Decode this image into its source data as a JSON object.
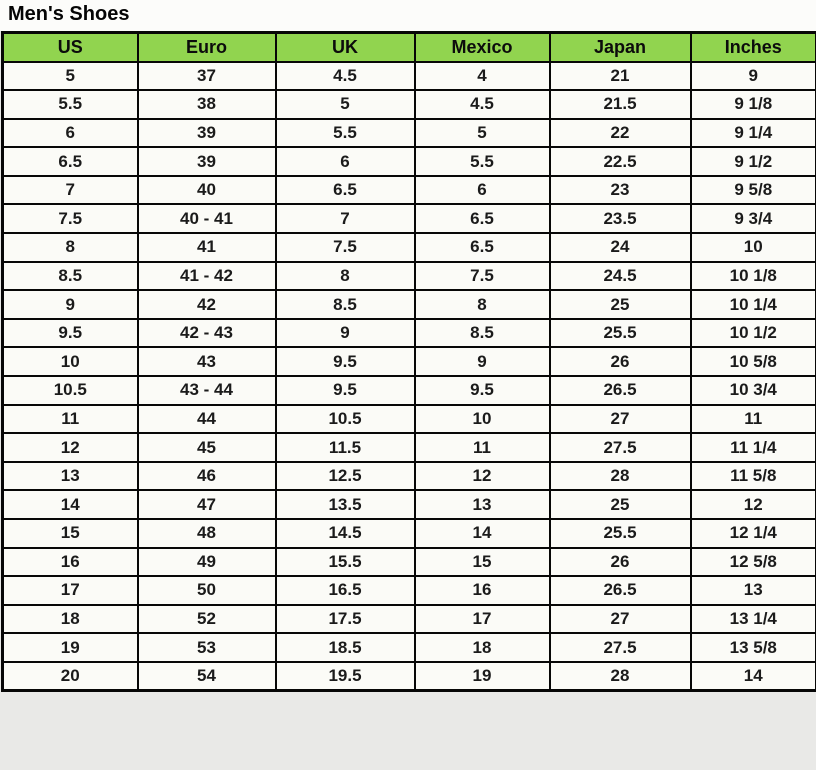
{
  "title": "Men's Shoes",
  "colors": {
    "header_bg": "#91d44f",
    "cell_bg": "#fbfbf7",
    "page_bg": "#e9e9e7",
    "border": "#070707",
    "text": "#1b1b1b"
  },
  "chart_data": {
    "type": "table",
    "title": "Men's Shoes",
    "columns": [
      "US",
      "Euro",
      "UK",
      "Mexico",
      "Japan",
      "Inches"
    ],
    "rows": [
      [
        "5",
        "37",
        "4.5",
        "4",
        "21",
        "9"
      ],
      [
        "5.5",
        "38",
        "5",
        "4.5",
        "21.5",
        "9 1/8"
      ],
      [
        "6",
        "39",
        "5.5",
        "5",
        "22",
        "9 1/4"
      ],
      [
        "6.5",
        "39",
        "6",
        "5.5",
        "22.5",
        "9 1/2"
      ],
      [
        "7",
        "40",
        "6.5",
        "6",
        "23",
        "9 5/8"
      ],
      [
        "7.5",
        "40 - 41",
        "7",
        "6.5",
        "23.5",
        "9 3/4"
      ],
      [
        "8",
        "41",
        "7.5",
        "6.5",
        "24",
        "10"
      ],
      [
        "8.5",
        "41 - 42",
        "8",
        "7.5",
        "24.5",
        "10 1/8"
      ],
      [
        "9",
        "42",
        "8.5",
        "8",
        "25",
        "10 1/4"
      ],
      [
        "9.5",
        "42 - 43",
        "9",
        "8.5",
        "25.5",
        "10 1/2"
      ],
      [
        "10",
        "43",
        "9.5",
        "9",
        "26",
        "10 5/8"
      ],
      [
        "10.5",
        "43 - 44",
        "9.5",
        "9.5",
        "26.5",
        "10 3/4"
      ],
      [
        "11",
        "44",
        "10.5",
        "10",
        "27",
        "11"
      ],
      [
        "12",
        "45",
        "11.5",
        "11",
        "27.5",
        "11 1/4"
      ],
      [
        "13",
        "46",
        "12.5",
        "12",
        "28",
        "11 5/8"
      ],
      [
        "14",
        "47",
        "13.5",
        "13",
        "25",
        "12"
      ],
      [
        "15",
        "48",
        "14.5",
        "14",
        "25.5",
        "12 1/4"
      ],
      [
        "16",
        "49",
        "15.5",
        "15",
        "26",
        "12 5/8"
      ],
      [
        "17",
        "50",
        "16.5",
        "16",
        "26.5",
        "13"
      ],
      [
        "18",
        "52",
        "17.5",
        "17",
        "27",
        "13 1/4"
      ],
      [
        "19",
        "53",
        "18.5",
        "18",
        "27.5",
        "13 5/8"
      ],
      [
        "20",
        "54",
        "19.5",
        "19",
        "28",
        "14"
      ]
    ]
  }
}
